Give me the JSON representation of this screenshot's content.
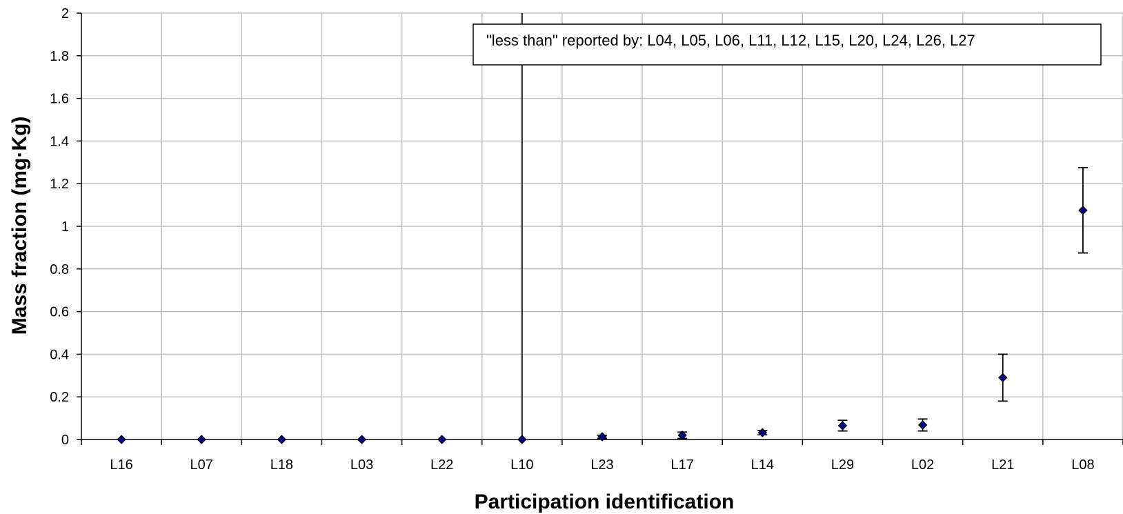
{
  "chart_data": {
    "type": "scatter",
    "title": "",
    "xlabel": "Participation identification",
    "ylabel": "Mass fraction (mg·Kg)",
    "ylim": [
      0,
      2
    ],
    "yticks": [
      0,
      0.2,
      0.4,
      0.6,
      0.8,
      1,
      1.2,
      1.4,
      1.6,
      1.8,
      2
    ],
    "ytick_labels": [
      "0",
      "0.2",
      "0.4",
      "0.6",
      "0.8",
      "1",
      "1.2",
      "1.4",
      "1.6",
      "1.8",
      "2"
    ],
    "categories": [
      "L16",
      "L07",
      "L18",
      "L03",
      "L22",
      "L10",
      "L23",
      "L17",
      "L14",
      "L29",
      "L02",
      "L21",
      "L08"
    ],
    "values": [
      0,
      0,
      0,
      0,
      0,
      0,
      0.013,
      0.02,
      0.032,
      0.065,
      0.068,
      0.29,
      1.075
    ],
    "error_bars": [
      {
        "category": "L10",
        "lower": 0,
        "upper": 2
      },
      {
        "category": "L23",
        "lower": 0.005,
        "upper": 0.02
      },
      {
        "category": "L17",
        "lower": 0.005,
        "upper": 0.035
      },
      {
        "category": "L14",
        "lower": 0.022,
        "upper": 0.042
      },
      {
        "category": "L29",
        "lower": 0.04,
        "upper": 0.09
      },
      {
        "category": "L02",
        "lower": 0.04,
        "upper": 0.096
      },
      {
        "category": "L21",
        "lower": 0.18,
        "upper": 0.4
      },
      {
        "category": "L08",
        "lower": 0.875,
        "upper": 1.275
      }
    ],
    "marker_color": "#000080",
    "grid": true,
    "annotation": "\"less than\" reported by: L04, L05, L06, L11, L12, L15, L20, L24, L26, L27"
  }
}
